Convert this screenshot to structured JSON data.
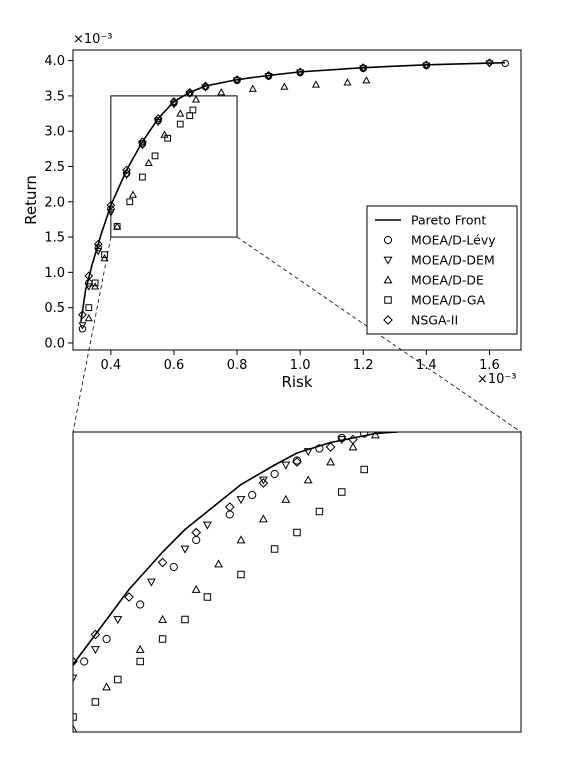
{
  "chart_data": [
    {
      "type": "scatter",
      "panel": "main",
      "xlabel": "Risk",
      "ylabel": "Return",
      "x_multiplier_label": "×10⁻³",
      "y_multiplier_label": "×10⁻³",
      "xlim": [
        0.28,
        1.7
      ],
      "ylim": [
        -0.1,
        4.15
      ],
      "xticks": [
        "0.4",
        "0.6",
        "0.8",
        "1.0",
        "1.2",
        "1.4",
        "1.6"
      ],
      "yticks": [
        "0.0",
        "0.5",
        "1.0",
        "1.5",
        "2.0",
        "2.5",
        "3.0",
        "3.5",
        "4.0"
      ],
      "grid": false,
      "legend_position": "lower-right",
      "zoom_box": {
        "x": [
          0.4,
          0.8
        ],
        "y": [
          1.5,
          3.5
        ]
      },
      "series": [
        {
          "name": "Pareto Front",
          "kind": "line",
          "x": [
            0.305,
            0.32,
            0.34,
            0.37,
            0.4,
            0.45,
            0.5,
            0.55,
            0.6,
            0.65,
            0.7,
            0.8,
            0.9,
            1.0,
            1.2,
            1.4,
            1.65
          ],
          "y": [
            0.3,
            0.75,
            1.1,
            1.55,
            1.95,
            2.45,
            2.85,
            3.18,
            3.42,
            3.55,
            3.64,
            3.73,
            3.79,
            3.84,
            3.9,
            3.94,
            3.97
          ]
        },
        {
          "name": "MOEA/D-Lévy",
          "marker": "circle",
          "x": [
            0.31,
            0.33,
            0.36,
            0.4,
            0.45,
            0.5,
            0.55,
            0.6,
            0.65,
            0.7,
            0.8,
            0.9,
            1.0,
            1.2,
            1.4,
            1.65
          ],
          "y": [
            0.2,
            0.85,
            1.35,
            1.9,
            2.4,
            2.82,
            3.15,
            3.4,
            3.54,
            3.63,
            3.72,
            3.78,
            3.83,
            3.89,
            3.93,
            3.96
          ]
        },
        {
          "name": "MOEA/D-DEM",
          "marker": "triangle-down",
          "x": [
            0.31,
            0.33,
            0.36,
            0.4,
            0.45,
            0.5,
            0.55,
            0.6,
            0.65,
            0.7,
            0.8,
            0.9,
            1.0,
            1.2,
            1.4,
            1.6
          ],
          "y": [
            0.25,
            0.8,
            1.3,
            1.85,
            2.38,
            2.8,
            3.13,
            3.38,
            3.53,
            3.62,
            3.72,
            3.78,
            3.83,
            3.89,
            3.93,
            3.96
          ]
        },
        {
          "name": "MOEA/D-DE",
          "marker": "triangle-up",
          "x": [
            0.33,
            0.35,
            0.38,
            0.42,
            0.47,
            0.52,
            0.57,
            0.62,
            0.67,
            0.75,
            0.85,
            0.95,
            1.05,
            1.15,
            1.21
          ],
          "y": [
            0.35,
            0.8,
            1.2,
            1.65,
            2.1,
            2.55,
            2.95,
            3.25,
            3.45,
            3.55,
            3.6,
            3.63,
            3.66,
            3.69,
            3.72
          ]
        },
        {
          "name": "MOEA/D-GA",
          "marker": "square",
          "x": [
            0.33,
            0.35,
            0.38,
            0.42,
            0.46,
            0.5,
            0.54,
            0.58,
            0.62,
            0.65,
            0.66
          ],
          "y": [
            0.5,
            0.85,
            1.25,
            1.65,
            2.0,
            2.35,
            2.65,
            2.9,
            3.1,
            3.22,
            3.3
          ]
        },
        {
          "name": "NSGA-II",
          "marker": "diamond",
          "x": [
            0.31,
            0.33,
            0.36,
            0.4,
            0.45,
            0.5,
            0.55,
            0.6,
            0.65,
            0.7,
            0.8,
            0.9,
            1.0,
            1.2,
            1.4,
            1.6
          ],
          "y": [
            0.4,
            0.95,
            1.4,
            1.95,
            2.45,
            2.85,
            3.18,
            3.42,
            3.55,
            3.64,
            3.73,
            3.79,
            3.84,
            3.9,
            3.94,
            3.97
          ]
        }
      ]
    },
    {
      "type": "scatter",
      "panel": "zoom-inset",
      "xlim": [
        0.4,
        0.8
      ],
      "ylim": [
        1.5,
        3.5
      ],
      "series": [
        {
          "name": "Pareto Front",
          "kind": "line",
          "x": [
            0.4,
            0.42,
            0.45,
            0.48,
            0.5,
            0.53,
            0.55,
            0.58,
            0.6,
            0.63,
            0.65,
            0.67,
            0.69
          ],
          "y": [
            1.95,
            2.15,
            2.45,
            2.7,
            2.85,
            3.03,
            3.15,
            3.28,
            3.36,
            3.43,
            3.46,
            3.49,
            3.5
          ]
        },
        {
          "name": "MOEA/D-Lévy",
          "marker": "circle",
          "x": [
            0.41,
            0.43,
            0.46,
            0.49,
            0.51,
            0.54,
            0.56,
            0.58,
            0.6,
            0.62,
            0.64,
            0.66
          ],
          "y": [
            1.97,
            2.12,
            2.35,
            2.6,
            2.78,
            2.95,
            3.08,
            3.22,
            3.31,
            3.39,
            3.46,
            3.49
          ]
        },
        {
          "name": "MOEA/D-DEM",
          "marker": "triangle-down",
          "x": [
            0.4,
            0.42,
            0.44,
            0.47,
            0.5,
            0.52,
            0.55,
            0.57,
            0.59,
            0.61,
            0.64
          ],
          "y": [
            1.86,
            2.05,
            2.25,
            2.5,
            2.72,
            2.88,
            3.05,
            3.18,
            3.28,
            3.37,
            3.45
          ]
        },
        {
          "name": "MOEA/D-DE",
          "marker": "triangle-up",
          "x": [
            0.4,
            0.43,
            0.46,
            0.48,
            0.51,
            0.53,
            0.55,
            0.57,
            0.59,
            0.61,
            0.63,
            0.65,
            0.67
          ],
          "y": [
            1.52,
            1.8,
            2.05,
            2.25,
            2.45,
            2.62,
            2.78,
            2.92,
            3.05,
            3.18,
            3.3,
            3.4,
            3.48
          ]
        },
        {
          "name": "MOEA/D-GA",
          "marker": "square",
          "x": [
            0.4,
            0.42,
            0.44,
            0.46,
            0.48,
            0.5,
            0.52,
            0.55,
            0.58,
            0.6,
            0.62,
            0.64,
            0.66
          ],
          "y": [
            1.6,
            1.7,
            1.85,
            1.97,
            2.12,
            2.25,
            2.4,
            2.55,
            2.72,
            2.83,
            2.97,
            3.1,
            3.25
          ]
        },
        {
          "name": "NSGA-II",
          "marker": "diamond",
          "x": [
            0.4,
            0.42,
            0.45,
            0.48,
            0.51,
            0.54,
            0.57,
            0.6,
            0.63,
            0.65
          ],
          "y": [
            1.97,
            2.15,
            2.4,
            2.63,
            2.83,
            3.0,
            3.16,
            3.3,
            3.4,
            3.45
          ]
        }
      ]
    }
  ]
}
